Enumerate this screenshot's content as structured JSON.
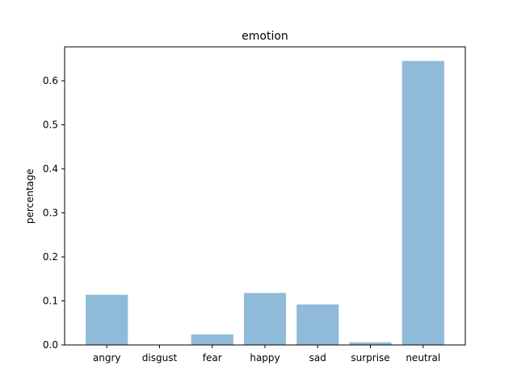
{
  "chart_data": {
    "type": "bar",
    "title": "emotion",
    "xlabel": "",
    "ylabel": "percentage",
    "categories": [
      "angry",
      "disgust",
      "fear",
      "happy",
      "sad",
      "surprise",
      "neutral"
    ],
    "values": [
      0.114,
      0.0,
      0.024,
      0.118,
      0.092,
      0.006,
      0.645
    ],
    "ylim": [
      0,
      0.677
    ],
    "yticks": [
      0.0,
      0.1,
      0.2,
      0.3,
      0.4,
      0.5,
      0.6
    ],
    "ytick_labels": [
      "0.0",
      "0.1",
      "0.2",
      "0.3",
      "0.4",
      "0.5",
      "0.6"
    ],
    "grid": false,
    "bar_color": "#8fbbd9"
  }
}
